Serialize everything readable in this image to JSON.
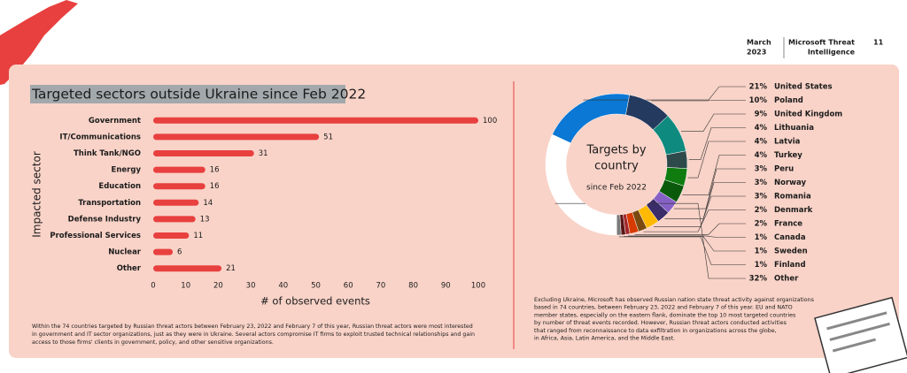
{
  "header": {
    "date": [
      "March",
      "2023"
    ],
    "publication": [
      "Microsoft Threat",
      "Intelligence"
    ],
    "page": "11"
  },
  "chart_data": [
    {
      "type": "bar",
      "orientation": "horizontal",
      "title": "Targeted sectors outside Ukraine since Feb 2022",
      "x_label": "# of observed events",
      "y_label": "Impacted sector",
      "categories": [
        "Government",
        "IT/Communications",
        "Think Tank/NGO",
        "Energy",
        "Education",
        "Transportation",
        "Defense Industry",
        "Professional Services",
        "Nuclear",
        "Other"
      ],
      "values": [
        100,
        51,
        31,
        16,
        16,
        14,
        13,
        11,
        6,
        21
      ],
      "color": "#e8403f",
      "xlim": [
        0,
        100
      ],
      "xticks": [
        0,
        10,
        20,
        30,
        40,
        50,
        60,
        70,
        80,
        90,
        100
      ],
      "note": [
        "Within the 74 countries targeted by Russian threat actors between February 23, 2022 and February 7 of this year, Russian threat actors were most interested",
        "in government and IT sector organizations, just as they were in Ukraine. Several actors compromise IT firms to exploit trusted technical relationships and gain",
        "access to those firms' clients in government, policy, and other sensitive organizations."
      ]
    },
    {
      "type": "donut",
      "title": [
        "Targets by",
        "country"
      ],
      "subtitle": "since Feb 2022",
      "categories": [
        "United States",
        "Poland",
        "United Kingdom",
        "Lithuania",
        "Latvia",
        "Turkey",
        "Peru",
        "Norway",
        "Romania",
        "Denmark",
        "France",
        "Canada",
        "Sweden",
        "Finland",
        "Other"
      ],
      "values": [
        21,
        10,
        9,
        4,
        4,
        4,
        3,
        3,
        3,
        2,
        2,
        1,
        1,
        1,
        32
      ],
      "value_labels": [
        "21%",
        "10%",
        "9%",
        "4%",
        "4%",
        "4%",
        "3%",
        "3%",
        "3%",
        "2%",
        "2%",
        "1%",
        "1%",
        "1%",
        "32%"
      ],
      "colors": [
        "#0a78d4",
        "#243a5e",
        "#0f8a7e",
        "#2f4a4a",
        "#107c10",
        "#0b5a0b",
        "#8661c5",
        "#3b2c6a",
        "#ffb900",
        "#7a4a10",
        "#d83b01",
        "#a4262c",
        "#5a1616",
        "#7a7a7a",
        "#ffffff"
      ],
      "note": [
        "Excluding Ukraine, Microsoft has observed Russian nation state threat activity against organizations",
        "based in 74 countries, between February 23, 2022 and February 7 of this year. EU and NATO",
        "member states, especially on the eastern flank, dominate the top 10 most targeted countries",
        "by number of threat events recorded. However, Russian threat actors conducted activities",
        "that ranged from reconnaissance to data exfiltration in organizations across the globe,",
        "in Africa, Asia, Latin America, and the Middle East."
      ]
    }
  ]
}
